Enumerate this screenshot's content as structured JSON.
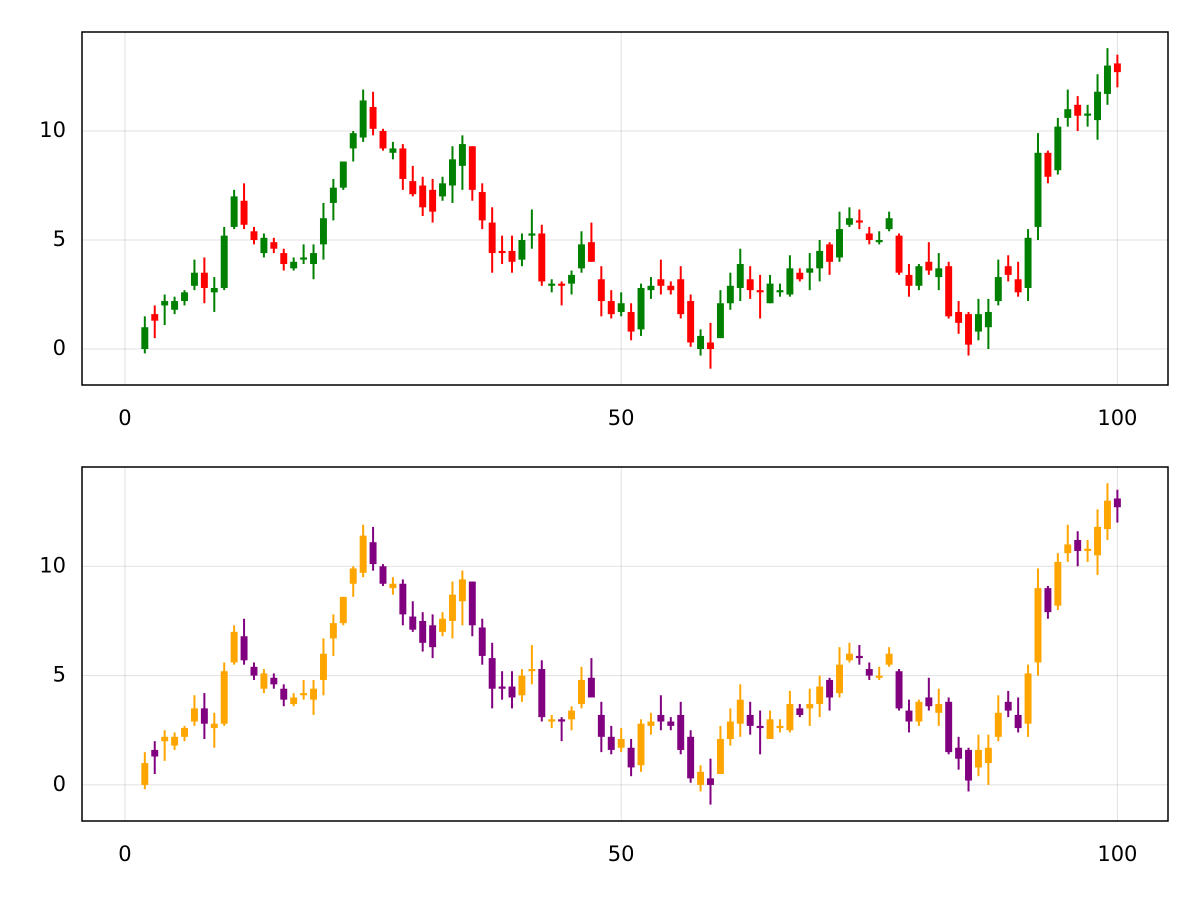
{
  "chart_data": [
    {
      "type": "candlestick",
      "up_color": "#008000",
      "down_color": "#ff0000",
      "grid": true,
      "xlim": [
        -4.33,
        105.1
      ],
      "ylim": [
        -1.65,
        14.54
      ],
      "xticks": [
        0,
        50,
        100
      ],
      "yticks": [
        0,
        5,
        10
      ],
      "x": [
        2,
        3,
        4,
        5,
        6,
        7,
        8,
        9,
        10,
        11,
        12,
        13,
        14,
        15,
        16,
        17,
        18,
        19,
        20,
        21,
        22,
        23,
        24,
        25,
        26,
        27,
        28,
        29,
        30,
        31,
        32,
        33,
        34,
        35,
        36,
        37,
        38,
        39,
        40,
        41,
        42,
        43,
        44,
        45,
        46,
        47,
        48,
        49,
        50,
        51,
        52,
        53,
        54,
        55,
        56,
        57,
        58,
        59,
        60,
        61,
        62,
        63,
        64,
        65,
        66,
        67,
        68,
        69,
        70,
        71,
        72,
        73,
        74,
        75,
        76,
        77,
        78,
        79,
        80,
        81,
        82,
        83,
        84,
        85,
        86,
        87,
        88,
        89,
        90,
        91,
        92,
        93,
        94,
        95,
        96,
        97,
        98,
        99,
        100
      ],
      "open": [
        0.0,
        1.6,
        2.0,
        1.8,
        2.2,
        2.9,
        3.5,
        2.6,
        2.8,
        5.6,
        6.8,
        5.4,
        4.4,
        4.9,
        4.4,
        3.7,
        4.1,
        3.9,
        4.8,
        6.7,
        7.4,
        9.2,
        9.7,
        11.1,
        10.0,
        9.0,
        9.2,
        7.7,
        7.5,
        7.3,
        7.0,
        7.5,
        8.4,
        9.3,
        7.2,
        5.8,
        4.5,
        4.5,
        4.1,
        5.2,
        5.3,
        2.9,
        3.0,
        3.0,
        3.7,
        4.9,
        3.2,
        2.2,
        1.7,
        1.7,
        0.9,
        2.7,
        3.2,
        2.9,
        3.2,
        2.2,
        0.0,
        0.3,
        0.5,
        2.1,
        2.8,
        3.2,
        2.7,
        2.1,
        2.6,
        2.5,
        3.5,
        3.5,
        3.7,
        4.8,
        4.2,
        5.7,
        5.9,
        5.3,
        4.9,
        5.5,
        5.2,
        3.4,
        2.9,
        4.0,
        3.3,
        3.8,
        1.7,
        1.6,
        0.8,
        1.0,
        2.2,
        3.8,
        3.2,
        2.8,
        5.6,
        9.0,
        8.2,
        10.6,
        11.2,
        10.7,
        10.5,
        11.7,
        13.1
      ],
      "high": [
        1.5,
        2.0,
        2.5,
        2.4,
        2.7,
        4.1,
        4.2,
        3.3,
        5.6,
        7.3,
        7.6,
        5.6,
        5.3,
        5.1,
        4.6,
        4.2,
        4.8,
        4.8,
        6.7,
        7.8,
        8.6,
        10.0,
        11.9,
        11.8,
        10.1,
        9.5,
        9.4,
        8.4,
        7.9,
        7.8,
        7.9,
        9.3,
        9.8,
        9.3,
        7.6,
        6.5,
        5.2,
        5.2,
        5.3,
        6.4,
        5.7,
        3.2,
        3.1,
        3.6,
        5.4,
        5.8,
        3.8,
        2.7,
        2.6,
        2.1,
        3.0,
        3.3,
        4.1,
        3.1,
        3.8,
        2.5,
        0.9,
        1.2,
        2.7,
        3.5,
        4.6,
        3.8,
        3.4,
        3.4,
        3.0,
        4.3,
        3.7,
        4.4,
        5.0,
        4.9,
        6.3,
        6.5,
        6.4,
        5.6,
        5.4,
        6.3,
        5.3,
        3.9,
        3.9,
        4.9,
        4.4,
        4.0,
        2.2,
        1.7,
        2.3,
        2.3,
        4.1,
        4.3,
        4.0,
        5.5,
        9.9,
        9.1,
        10.6,
        11.9,
        11.6,
        11.2,
        12.6,
        13.8,
        13.5
      ],
      "low": [
        -0.2,
        0.5,
        1.1,
        1.6,
        2.0,
        2.7,
        2.1,
        1.7,
        2.7,
        5.5,
        5.5,
        4.8,
        4.2,
        4.4,
        3.6,
        3.6,
        3.9,
        3.2,
        4.1,
        5.9,
        7.3,
        8.6,
        9.5,
        9.8,
        9.1,
        8.7,
        7.3,
        7.0,
        6.1,
        5.8,
        6.8,
        6.7,
        7.3,
        6.8,
        5.5,
        3.5,
        3.9,
        3.5,
        3.8,
        4.6,
        2.9,
        2.6,
        2.0,
        2.5,
        3.5,
        4.0,
        1.5,
        1.4,
        1.5,
        0.4,
        0.6,
        2.3,
        2.5,
        2.5,
        1.4,
        0.1,
        -0.3,
        -0.9,
        0.5,
        1.8,
        2.2,
        2.3,
        1.4,
        2.1,
        2.4,
        2.4,
        3.1,
        2.7,
        3.1,
        3.4,
        4.0,
        5.6,
        5.5,
        4.8,
        4.8,
        5.4,
        3.4,
        2.4,
        2.7,
        3.4,
        2.7,
        1.4,
        0.7,
        -0.3,
        0.4,
        0.0,
        2.0,
        3.1,
        2.4,
        2.2,
        5.0,
        7.6,
        8.0,
        10.2,
        10.0,
        10.2,
        9.6,
        11.2,
        12.0
      ],
      "close": [
        1.0,
        1.3,
        2.2,
        2.2,
        2.6,
        3.5,
        2.8,
        2.8,
        5.2,
        7.0,
        5.7,
        5.0,
        5.1,
        4.6,
        3.9,
        4.0,
        4.2,
        4.4,
        6.0,
        7.4,
        8.6,
        9.9,
        11.4,
        10.1,
        9.2,
        9.2,
        7.8,
        7.1,
        6.5,
        6.3,
        7.6,
        8.7,
        9.4,
        7.3,
        5.9,
        4.4,
        4.4,
        4.0,
        5.0,
        5.3,
        3.1,
        3.0,
        2.9,
        3.4,
        4.8,
        4.0,
        2.2,
        1.6,
        2.1,
        0.8,
        2.8,
        2.9,
        2.9,
        2.7,
        1.6,
        0.3,
        0.6,
        0.0,
        2.1,
        2.9,
        3.9,
        2.7,
        2.6,
        3.0,
        2.7,
        3.7,
        3.2,
        3.7,
        4.5,
        4.0,
        5.5,
        6.0,
        5.8,
        5.0,
        5.0,
        6.0,
        3.5,
        2.9,
        3.8,
        3.6,
        3.7,
        1.5,
        1.2,
        0.2,
        1.6,
        1.7,
        3.3,
        3.4,
        2.6,
        5.1,
        9.0,
        7.9,
        10.2,
        11.0,
        10.7,
        10.8,
        11.8,
        13.0,
        12.7
      ]
    },
    {
      "type": "candlestick",
      "up_color": "#ffa500",
      "down_color": "#800080",
      "grid": true,
      "xlim": [
        -4.33,
        105.1
      ],
      "ylim": [
        -1.65,
        14.54
      ],
      "xticks": [
        0,
        50,
        100
      ],
      "yticks": [
        0,
        5,
        10
      ],
      "x": [
        2,
        3,
        4,
        5,
        6,
        7,
        8,
        9,
        10,
        11,
        12,
        13,
        14,
        15,
        16,
        17,
        18,
        19,
        20,
        21,
        22,
        23,
        24,
        25,
        26,
        27,
        28,
        29,
        30,
        31,
        32,
        33,
        34,
        35,
        36,
        37,
        38,
        39,
        40,
        41,
        42,
        43,
        44,
        45,
        46,
        47,
        48,
        49,
        50,
        51,
        52,
        53,
        54,
        55,
        56,
        57,
        58,
        59,
        60,
        61,
        62,
        63,
        64,
        65,
        66,
        67,
        68,
        69,
        70,
        71,
        72,
        73,
        74,
        75,
        76,
        77,
        78,
        79,
        80,
        81,
        82,
        83,
        84,
        85,
        86,
        87,
        88,
        89,
        90,
        91,
        92,
        93,
        94,
        95,
        96,
        97,
        98,
        99,
        100
      ],
      "open": [
        0.0,
        1.6,
        2.0,
        1.8,
        2.2,
        2.9,
        3.5,
        2.6,
        2.8,
        5.6,
        6.8,
        5.4,
        4.4,
        4.9,
        4.4,
        3.7,
        4.1,
        3.9,
        4.8,
        6.7,
        7.4,
        9.2,
        9.7,
        11.1,
        10.0,
        9.0,
        9.2,
        7.7,
        7.5,
        7.3,
        7.0,
        7.5,
        8.4,
        9.3,
        7.2,
        5.8,
        4.5,
        4.5,
        4.1,
        5.2,
        5.3,
        2.9,
        3.0,
        3.0,
        3.7,
        4.9,
        3.2,
        2.2,
        1.7,
        1.7,
        0.9,
        2.7,
        3.2,
        2.9,
        3.2,
        2.2,
        0.0,
        0.3,
        0.5,
        2.1,
        2.8,
        3.2,
        2.7,
        2.1,
        2.6,
        2.5,
        3.5,
        3.5,
        3.7,
        4.8,
        4.2,
        5.7,
        5.9,
        5.3,
        4.9,
        5.5,
        5.2,
        3.4,
        2.9,
        4.0,
        3.3,
        3.8,
        1.7,
        1.6,
        0.8,
        1.0,
        2.2,
        3.8,
        3.2,
        2.8,
        5.6,
        9.0,
        8.2,
        10.6,
        11.2,
        10.7,
        10.5,
        11.7,
        13.1
      ],
      "high": [
        1.5,
        2.0,
        2.5,
        2.4,
        2.7,
        4.1,
        4.2,
        3.3,
        5.6,
        7.3,
        7.6,
        5.6,
        5.3,
        5.1,
        4.6,
        4.2,
        4.8,
        4.8,
        6.7,
        7.8,
        8.6,
        10.0,
        11.9,
        11.8,
        10.1,
        9.5,
        9.4,
        8.4,
        7.9,
        7.8,
        7.9,
        9.3,
        9.8,
        9.3,
        7.6,
        6.5,
        5.2,
        5.2,
        5.3,
        6.4,
        5.7,
        3.2,
        3.1,
        3.6,
        5.4,
        5.8,
        3.8,
        2.7,
        2.6,
        2.1,
        3.0,
        3.3,
        4.1,
        3.1,
        3.8,
        2.5,
        0.9,
        1.2,
        2.7,
        3.5,
        4.6,
        3.8,
        3.4,
        3.4,
        3.0,
        4.3,
        3.7,
        4.4,
        5.0,
        4.9,
        6.3,
        6.5,
        6.4,
        5.6,
        5.4,
        6.3,
        5.3,
        3.9,
        3.9,
        4.9,
        4.4,
        4.0,
        2.2,
        1.7,
        2.3,
        2.3,
        4.1,
        4.3,
        4.0,
        5.5,
        9.9,
        9.1,
        10.6,
        11.9,
        11.6,
        11.2,
        12.6,
        13.8,
        13.5
      ],
      "low": [
        -0.2,
        0.5,
        1.1,
        1.6,
        2.0,
        2.7,
        2.1,
        1.7,
        2.7,
        5.5,
        5.5,
        4.8,
        4.2,
        4.4,
        3.6,
        3.6,
        3.9,
        3.2,
        4.1,
        5.9,
        7.3,
        8.6,
        9.5,
        9.8,
        9.1,
        8.7,
        7.3,
        7.0,
        6.1,
        5.8,
        6.8,
        6.7,
        7.3,
        6.8,
        5.5,
        3.5,
        3.9,
        3.5,
        3.8,
        4.6,
        2.9,
        2.6,
        2.0,
        2.5,
        3.5,
        4.0,
        1.5,
        1.4,
        1.5,
        0.4,
        0.6,
        2.3,
        2.5,
        2.5,
        1.4,
        0.1,
        -0.3,
        -0.9,
        0.5,
        1.8,
        2.2,
        2.3,
        1.4,
        2.1,
        2.4,
        2.4,
        3.1,
        2.7,
        3.1,
        3.4,
        4.0,
        5.6,
        5.5,
        4.8,
        4.8,
        5.4,
        3.4,
        2.4,
        2.7,
        3.4,
        2.7,
        1.4,
        0.7,
        -0.3,
        0.4,
        0.0,
        2.0,
        3.1,
        2.4,
        2.2,
        5.0,
        7.6,
        8.0,
        10.2,
        10.0,
        10.2,
        9.6,
        11.2,
        12.0
      ],
      "close": [
        1.0,
        1.3,
        2.2,
        2.2,
        2.6,
        3.5,
        2.8,
        2.8,
        5.2,
        7.0,
        5.7,
        5.0,
        5.1,
        4.6,
        3.9,
        4.0,
        4.2,
        4.4,
        6.0,
        7.4,
        8.6,
        9.9,
        11.4,
        10.1,
        9.2,
        9.2,
        7.8,
        7.1,
        6.5,
        6.3,
        7.6,
        8.7,
        9.4,
        7.3,
        5.9,
        4.4,
        4.4,
        4.0,
        5.0,
        5.3,
        3.1,
        3.0,
        2.9,
        3.4,
        4.8,
        4.0,
        2.2,
        1.6,
        2.1,
        0.8,
        2.8,
        2.9,
        2.9,
        2.7,
        1.6,
        0.3,
        0.6,
        0.0,
        2.1,
        2.9,
        3.9,
        2.7,
        2.6,
        3.0,
        2.7,
        3.7,
        3.2,
        3.7,
        4.5,
        4.0,
        5.5,
        6.0,
        5.8,
        5.0,
        5.0,
        6.0,
        3.5,
        2.9,
        3.8,
        3.6,
        3.7,
        1.5,
        1.2,
        0.2,
        1.6,
        1.7,
        3.3,
        3.4,
        2.6,
        5.1,
        9.0,
        7.9,
        10.2,
        11.0,
        10.7,
        10.8,
        11.8,
        13.0,
        12.7
      ]
    }
  ]
}
